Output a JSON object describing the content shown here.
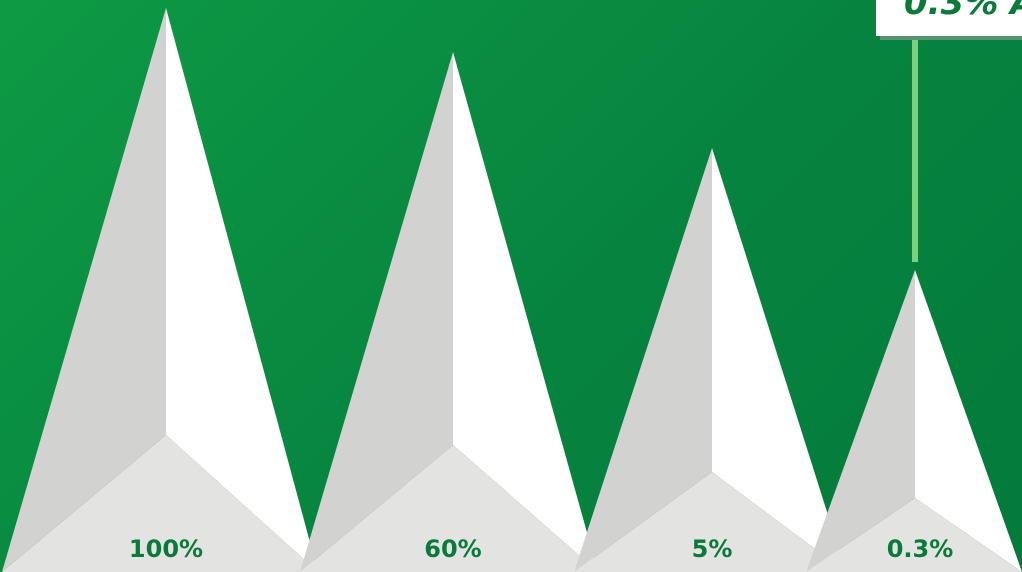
{
  "chart_data": {
    "type": "bar",
    "categories": [
      "100%",
      "60%",
      "5%",
      "0.3%"
    ],
    "values": [
      100,
      60,
      5,
      0.3
    ],
    "data_labels": [
      "100%",
      "60%",
      "5%",
      "0.3%"
    ],
    "callout": "0.3% A",
    "colors": {
      "background": "#0b8a3c",
      "peak_shadow": "#d2d2d0",
      "peak_light": "#ffffff",
      "peak_base": "#e3e3e1",
      "label": "#0a7a3a",
      "callout_line": "#7ed07e"
    }
  }
}
